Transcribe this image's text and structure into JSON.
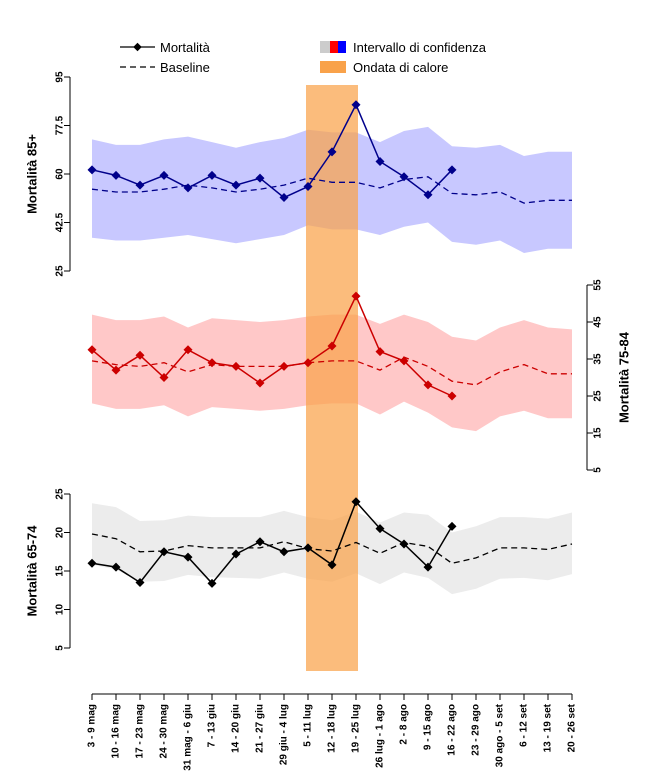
{
  "legend": {
    "mortality_label": "Mortalità",
    "baseline_label": "Baseline",
    "ci_label": "Intervallo di confidenza",
    "heatwave_label": "Ondata di calore",
    "ci_swatch_colors": [
      "#cccccc",
      "#ff0000",
      "#0000ff"
    ],
    "heatwave_color": "#f9a24a"
  },
  "chart_data": {
    "type": "line",
    "categories": [
      "3 - 9 mag",
      "10 - 16 mag",
      "17 - 23 mag",
      "24 - 30 mag",
      "31 mag - 6 giu",
      "7 - 13 giu",
      "14 - 20 giu",
      "21 - 27 giu",
      "29 giu - 4 lug",
      "5 - 11 lug",
      "12 - 18 lug",
      "19 - 25 lug",
      "26 lug - 1 ago",
      "2 - 8 ago",
      "9 - 15 ago",
      "16 - 22 ago",
      "23 - 29 ago",
      "30 ago - 5 set",
      "6 - 12 set",
      "13 - 19 set",
      "20 - 26 set"
    ],
    "heatwave_range": [
      "5 - 11 lug",
      "19 - 25 lug"
    ],
    "panels": [
      {
        "id": "85+",
        "ylabel": "Mortalità 85+",
        "axis_side": "left",
        "yticks": [
          25,
          42.5,
          60,
          77.5,
          95
        ],
        "ylim": [
          25,
          95
        ],
        "line_color": "#00008b",
        "band_color": "#c8c8ff",
        "mortality": [
          61.5,
          59.5,
          56.0,
          59.5,
          55.0,
          59.5,
          56.0,
          58.5,
          51.5,
          55.5,
          68.0,
          85.0,
          64.5,
          59.0,
          52.5,
          61.5,
          null,
          null,
          null,
          null,
          null
        ],
        "baseline": [
          54.5,
          53.5,
          53.5,
          54.5,
          56.0,
          55.0,
          53.5,
          54.5,
          56.0,
          58.5,
          57.0,
          57.0,
          55.0,
          58.0,
          59.0,
          53.0,
          52.5,
          53.5,
          49.5,
          50.5,
          50.5
        ],
        "ci_upper": [
          72.5,
          70.5,
          70.5,
          72.5,
          73.5,
          71.5,
          69.5,
          71.5,
          73.0,
          76.0,
          75.0,
          75.0,
          71.5,
          75.5,
          77.0,
          70.0,
          69.5,
          70.5,
          66.5,
          68.0,
          68.0
        ],
        "ci_lower": [
          37.0,
          36.0,
          36.0,
          37.0,
          38.0,
          36.5,
          35.0,
          36.5,
          38.0,
          41.5,
          40.0,
          40.0,
          38.0,
          41.0,
          42.5,
          35.5,
          34.5,
          36.0,
          31.5,
          33.0,
          33.0
        ]
      },
      {
        "id": "75-84",
        "ylabel": "Mortalità 75-84",
        "axis_side": "right",
        "yticks": [
          5,
          15,
          25,
          35,
          45,
          55
        ],
        "ylim": [
          5,
          55
        ],
        "line_color": "#cc0000",
        "band_color": "#ffc8c8",
        "mortality": [
          37.5,
          32.0,
          36.0,
          30.0,
          37.5,
          34.0,
          33.0,
          28.5,
          33.0,
          34.0,
          38.5,
          52.0,
          37.0,
          34.5,
          28.0,
          25.0,
          null,
          null,
          null,
          null,
          null
        ],
        "baseline": [
          34.5,
          33.5,
          33.0,
          34.0,
          31.5,
          33.5,
          33.0,
          33.0,
          33.0,
          34.0,
          34.5,
          34.5,
          32.0,
          35.5,
          33.0,
          29.0,
          28.0,
          31.5,
          33.5,
          31.0,
          31.0
        ],
        "ci_upper": [
          47.0,
          45.5,
          45.5,
          46.5,
          43.5,
          46.0,
          45.5,
          45.0,
          45.5,
          46.5,
          47.0,
          47.0,
          44.5,
          47.0,
          45.0,
          41.0,
          40.0,
          43.5,
          45.5,
          43.5,
          43.0
        ],
        "ci_lower": [
          23.0,
          21.5,
          21.5,
          22.5,
          19.5,
          22.0,
          21.5,
          21.0,
          21.5,
          22.5,
          23.0,
          23.0,
          20.0,
          23.5,
          20.5,
          16.5,
          15.5,
          19.5,
          21.0,
          19.0,
          19.0
        ]
      },
      {
        "id": "65-74",
        "ylabel": "Mortalità 65-74",
        "axis_side": "left",
        "yticks": [
          5,
          10,
          15,
          20,
          25
        ],
        "ylim": [
          5,
          25
        ],
        "line_color": "#000000",
        "band_color": "#ececec",
        "mortality": [
          16.0,
          15.5,
          13.5,
          17.5,
          16.8,
          13.4,
          17.2,
          18.8,
          17.5,
          18.0,
          15.8,
          24.0,
          20.5,
          18.5,
          15.5,
          20.8,
          null,
          null,
          null,
          null,
          null
        ],
        "baseline": [
          19.8,
          19.2,
          17.5,
          17.6,
          18.3,
          18.0,
          18.0,
          18.0,
          18.8,
          17.9,
          17.6,
          18.7,
          17.3,
          18.7,
          18.2,
          16.0,
          16.7,
          18.0,
          18.0,
          17.8,
          18.5
        ],
        "ci_upper": [
          23.8,
          23.3,
          21.5,
          21.6,
          22.2,
          22.0,
          22.0,
          22.0,
          22.8,
          22.0,
          21.6,
          22.7,
          21.3,
          22.6,
          22.3,
          20.0,
          20.8,
          22.0,
          22.0,
          21.8,
          22.6
        ],
        "ci_lower": [
          15.8,
          15.2,
          13.6,
          13.7,
          14.5,
          14.2,
          14.1,
          14.0,
          14.8,
          14.0,
          13.6,
          14.7,
          13.3,
          14.8,
          14.1,
          12.0,
          12.7,
          14.0,
          14.1,
          13.8,
          14.6
        ]
      }
    ]
  }
}
